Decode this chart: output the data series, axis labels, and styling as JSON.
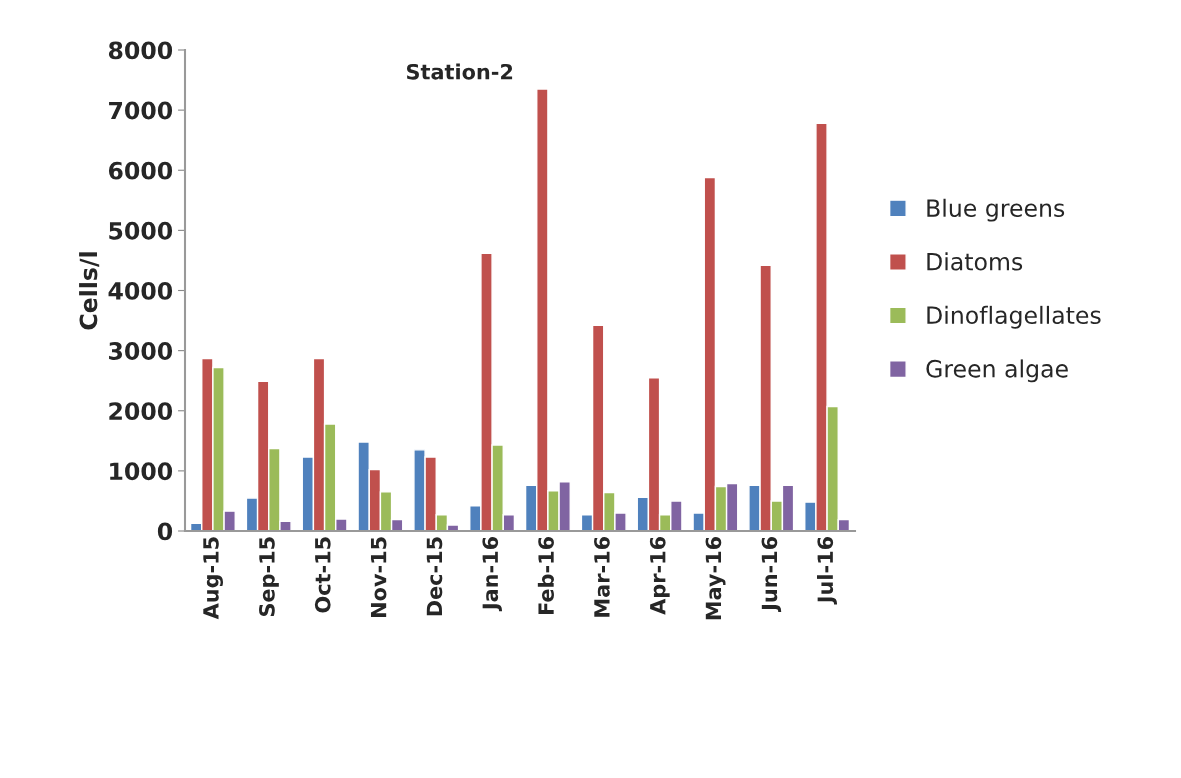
{
  "chart_data": {
    "type": "bar",
    "title": "Station-2",
    "ylabel": "Cells/l",
    "categories": [
      "Aug-15",
      "Sep-15",
      "Oct-15",
      "Nov-15",
      "Dec-15",
      "Jan-16",
      "Feb-16",
      "Mar-16",
      "Apr-16",
      "May-16",
      "Jun-16",
      "Jul-16"
    ],
    "series": [
      {
        "name": "Blue greens",
        "color": "#4f81bd",
        "values": [
          130,
          550,
          1230,
          1480,
          1350,
          420,
          760,
          270,
          560,
          300,
          760,
          480
        ]
      },
      {
        "name": "Diatoms",
        "color": "#c0504d",
        "values": [
          2870,
          2490,
          2870,
          1020,
          1230,
          4620,
          7350,
          3420,
          2550,
          5880,
          4420,
          6780
        ]
      },
      {
        "name": "Dinoflagellates",
        "color": "#9bbb59",
        "values": [
          2720,
          1370,
          1780,
          650,
          270,
          1430,
          670,
          640,
          270,
          740,
          500,
          2070
        ]
      },
      {
        "name": "Green algae",
        "color": "#8064a2",
        "values": [
          330,
          160,
          200,
          190,
          100,
          270,
          820,
          300,
          500,
          790,
          760,
          190
        ]
      }
    ],
    "ylim": [
      0,
      8000
    ],
    "yticks": [
      0,
      1000,
      2000,
      3000,
      4000,
      5000,
      6000,
      7000,
      8000
    ],
    "grid": false,
    "legend": "right"
  }
}
